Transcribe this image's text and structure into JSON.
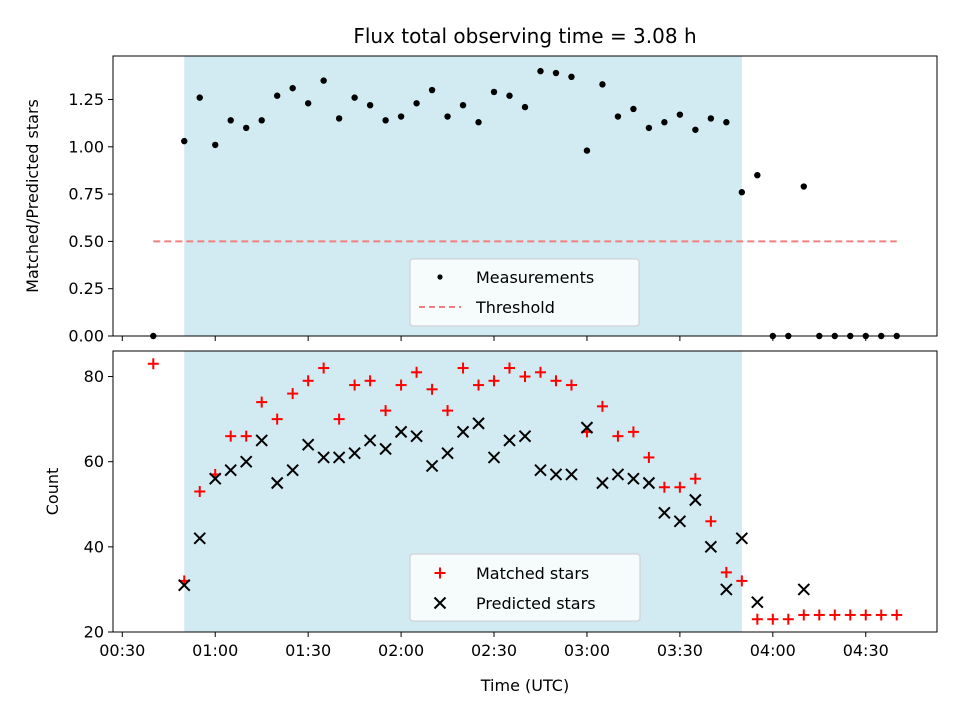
{
  "colors": {
    "shade": "#add8e6",
    "threshold": "#f08080",
    "matched": "#ff0000",
    "predicted": "#000000",
    "measurement": "#000000"
  },
  "chart_data": [
    {
      "type": "scatter",
      "title": "Flux total observing time = 3.08 h",
      "xlabel": "",
      "ylabel": "Matched/Predicted stars",
      "xlim": [
        "00:27",
        "04:53"
      ],
      "ylim": [
        0,
        1.48
      ],
      "yticks": [
        "0.00",
        "0.25",
        "0.50",
        "0.75",
        "1.00",
        "1.25"
      ],
      "grid": false,
      "legend_position": "lower-center",
      "shaded_region": {
        "start": "00:50",
        "end": "03:50"
      },
      "threshold": {
        "name": "Threshold",
        "value": 0.5,
        "x_start": "00:40",
        "x_end": "04:40"
      },
      "series": [
        {
          "name": "Measurements",
          "x": [
            "00:40",
            "00:50",
            "00:55",
            "01:00",
            "01:05",
            "01:10",
            "01:15",
            "01:20",
            "01:25",
            "01:30",
            "01:35",
            "01:40",
            "01:45",
            "01:50",
            "01:55",
            "02:00",
            "02:05",
            "02:10",
            "02:15",
            "02:20",
            "02:25",
            "02:30",
            "02:35",
            "02:40",
            "02:45",
            "02:50",
            "02:55",
            "03:00",
            "03:05",
            "03:10",
            "03:15",
            "03:20",
            "03:25",
            "03:30",
            "03:35",
            "03:40",
            "03:45",
            "03:50",
            "03:55",
            "04:00",
            "04:05",
            "04:10",
            "04:15",
            "04:20",
            "04:25",
            "04:30",
            "04:35",
            "04:40"
          ],
          "y": [
            0.0,
            1.03,
            1.26,
            1.01,
            1.14,
            1.1,
            1.14,
            1.27,
            1.31,
            1.23,
            1.35,
            1.15,
            1.26,
            1.22,
            1.14,
            1.16,
            1.23,
            1.3,
            1.16,
            1.22,
            1.13,
            1.29,
            1.27,
            1.21,
            1.4,
            1.39,
            1.37,
            0.98,
            1.33,
            1.16,
            1.2,
            1.1,
            1.13,
            1.17,
            1.09,
            1.15,
            1.13,
            0.76,
            0.85,
            0.0,
            0.0,
            0.79,
            0.0,
            0.0,
            0.0,
            0.0,
            0.0,
            0.0
          ]
        }
      ]
    },
    {
      "type": "scatter",
      "title": "",
      "xlabel": "Time (UTC)",
      "ylabel": "Count",
      "xlim": [
        "00:27",
        "04:53"
      ],
      "ylim": [
        20,
        86
      ],
      "yticks": [
        "20",
        "40",
        "60",
        "80"
      ],
      "xticks": [
        "00:30",
        "01:00",
        "01:30",
        "02:00",
        "02:30",
        "03:00",
        "03:30",
        "04:00",
        "04:30"
      ],
      "grid": false,
      "legend_position": "lower-center",
      "shaded_region": {
        "start": "00:50",
        "end": "03:50"
      },
      "series": [
        {
          "name": "Matched stars",
          "x": [
            "00:40",
            "00:50",
            "00:55",
            "01:00",
            "01:05",
            "01:10",
            "01:15",
            "01:20",
            "01:25",
            "01:30",
            "01:35",
            "01:40",
            "01:45",
            "01:50",
            "01:55",
            "02:00",
            "02:05",
            "02:10",
            "02:15",
            "02:20",
            "02:25",
            "02:30",
            "02:35",
            "02:40",
            "02:45",
            "02:50",
            "02:55",
            "03:00",
            "03:05",
            "03:10",
            "03:15",
            "03:20",
            "03:25",
            "03:30",
            "03:35",
            "03:40",
            "03:45",
            "03:50",
            "03:55",
            "04:00",
            "04:05",
            "04:10",
            "04:15",
            "04:20",
            "04:25",
            "04:30",
            "04:35",
            "04:40"
          ],
          "y": [
            83,
            32,
            53,
            57,
            66,
            66,
            74,
            70,
            76,
            79,
            82,
            70,
            78,
            79,
            72,
            78,
            81,
            77,
            72,
            82,
            78,
            79,
            82,
            80,
            81,
            79,
            78,
            67,
            73,
            66,
            67,
            61,
            54,
            54,
            56,
            46,
            34,
            32,
            23,
            23,
            23,
            24,
            24,
            24,
            24,
            24,
            24,
            24
          ]
        },
        {
          "name": "Predicted stars",
          "x": [
            "00:50",
            "00:55",
            "01:00",
            "01:05",
            "01:10",
            "01:15",
            "01:20",
            "01:25",
            "01:30",
            "01:35",
            "01:40",
            "01:45",
            "01:50",
            "01:55",
            "02:00",
            "02:05",
            "02:10",
            "02:15",
            "02:20",
            "02:25",
            "02:30",
            "02:35",
            "02:40",
            "02:45",
            "02:50",
            "02:55",
            "03:00",
            "03:05",
            "03:10",
            "03:15",
            "03:20",
            "03:25",
            "03:30",
            "03:35",
            "03:40",
            "03:45",
            "03:50",
            "03:55",
            "04:10"
          ],
          "y": [
            31,
            42,
            56,
            58,
            60,
            65,
            55,
            58,
            64,
            61,
            61,
            62,
            65,
            63,
            67,
            66,
            59,
            62,
            67,
            69,
            61,
            65,
            66,
            58,
            57,
            57,
            68,
            55,
            57,
            56,
            55,
            48,
            46,
            51,
            40,
            30,
            42,
            27,
            30
          ]
        }
      ]
    }
  ]
}
